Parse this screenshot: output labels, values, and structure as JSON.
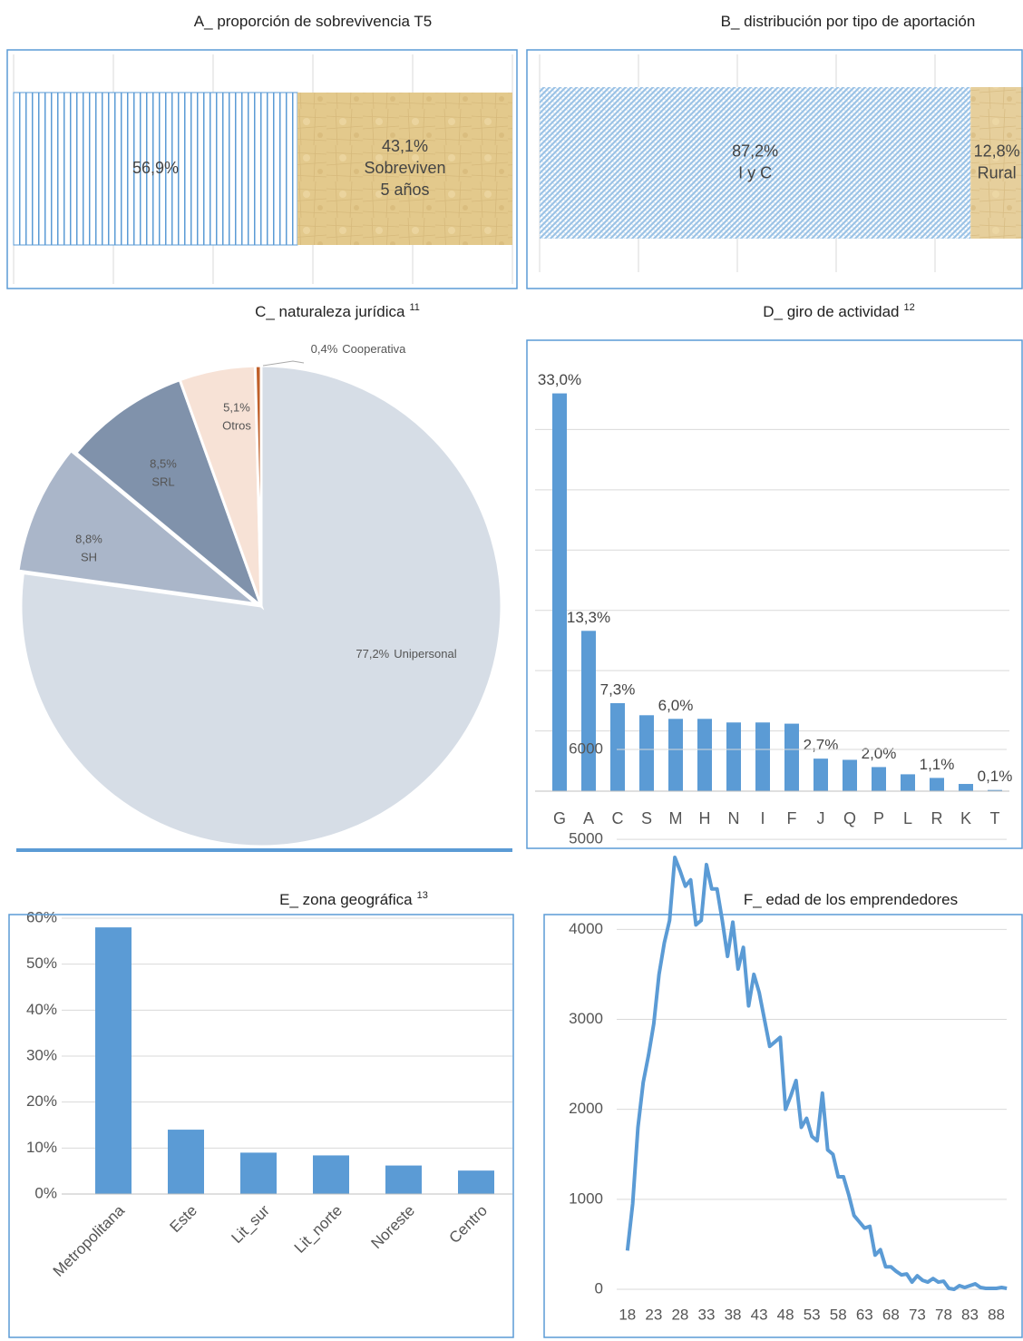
{
  "chart_data": [
    {
      "type": "stacked_bar",
      "title": "A_ proporción de sobrevivencia T5",
      "xlim": [
        0,
        100
      ],
      "xticks": [
        0,
        20,
        40,
        60,
        80,
        100
      ],
      "grid": true,
      "series": [
        {
          "values": [
            56.9
          ],
          "value_labels": [
            "56,9%"
          ],
          "color": "#5b9bd5",
          "pattern": "vertical"
        },
        {
          "name_lines": [
            "Sobreviven",
            "5 años"
          ],
          "values": [
            43.1
          ],
          "value_labels": [
            "43,1%"
          ],
          "color": "#e3c98c",
          "pattern": "paper"
        }
      ]
    },
    {
      "type": "stacked_bar",
      "title": "B_ distribución por tipo de aportación",
      "xlim": [
        0,
        100
      ],
      "xticks": [
        0,
        20,
        40,
        60,
        80,
        100
      ],
      "grid": true,
      "series": [
        {
          "name_lines": [
            "I y C"
          ],
          "values": [
            87.2
          ],
          "value_labels": [
            "87,2%"
          ],
          "color": "#9cc3e6",
          "pattern": "diagonal"
        },
        {
          "name_lines": [
            "Rural"
          ],
          "values": [
            12.8
          ],
          "value_labels": [
            "12,8%"
          ],
          "color": "#e6cf9c",
          "pattern": "paper"
        }
      ]
    },
    {
      "type": "pie",
      "title": "C_ naturaleza jurídica",
      "footnote": "11",
      "categories": [
        "Unipersonal",
        "SH",
        "SRL",
        "Otros",
        "Cooperativa"
      ],
      "values": [
        77.2,
        8.8,
        8.5,
        5.1,
        0.4
      ],
      "value_labels": [
        "77,2%",
        "8,8%",
        "8,5%",
        "5,1%",
        "0,4%"
      ],
      "colors": [
        "#d6dde6",
        "#aab6c9",
        "#8092ab",
        "#f7e2d6",
        "#c0602a"
      ]
    },
    {
      "type": "bar",
      "title": "D_ giro de actividad",
      "footnote": "12",
      "categories": [
        "G",
        "A",
        "C",
        "S",
        "M",
        "H",
        "N",
        "I",
        "F",
        "J",
        "Q",
        "P",
        "L",
        "R",
        "K",
        "T"
      ],
      "values": [
        33.0,
        13.3,
        7.3,
        6.3,
        6.0,
        6.0,
        5.7,
        5.7,
        5.6,
        2.7,
        2.6,
        2.0,
        1.4,
        1.1,
        0.6,
        0.1
      ],
      "value_labels": [
        "33,0%",
        "13,3%",
        "7,3%",
        null,
        "6,0%",
        null,
        null,
        null,
        null,
        "2,7%",
        null,
        "2,0%",
        null,
        "1,1%",
        null,
        "0,1%"
      ],
      "color": "#5b9bd5",
      "ylim": [
        0,
        35
      ],
      "yticks": [
        0,
        5,
        10,
        15,
        20,
        25,
        30
      ],
      "grid": true
    },
    {
      "type": "bar",
      "title": "E_ zona geográfica",
      "footnote": "13",
      "categories": [
        "Metropolitana",
        "Este",
        "Lit_sur",
        "Lit_norte",
        "Noreste",
        "Centro"
      ],
      "values": [
        58.0,
        14.0,
        9.0,
        8.4,
        6.2,
        5.1
      ],
      "color": "#5b9bd5",
      "ylim": [
        0,
        60
      ],
      "yticks": [
        {
          "value": 0,
          "label": "0%"
        },
        {
          "value": 10,
          "label": "10%"
        },
        {
          "value": 20,
          "label": "20%"
        },
        {
          "value": 30,
          "label": "30%"
        },
        {
          "value": 40,
          "label": "40%"
        },
        {
          "value": 50,
          "label": "50%"
        },
        {
          "value": 60,
          "label": "60%"
        }
      ],
      "grid": true
    },
    {
      "type": "line",
      "title": "F_ edad de los emprendedores",
      "x": [
        18,
        19,
        20,
        21,
        22,
        23,
        24,
        25,
        26,
        27,
        28,
        29,
        30,
        31,
        32,
        33,
        34,
        35,
        36,
        37,
        38,
        39,
        40,
        41,
        42,
        43,
        44,
        45,
        46,
        47,
        48,
        49,
        50,
        51,
        52,
        53,
        54,
        55,
        56,
        57,
        58,
        59,
        60,
        61,
        62,
        63,
        64,
        65,
        66,
        67,
        68,
        69,
        70,
        71,
        72,
        73,
        74,
        75,
        76,
        77,
        78,
        79,
        80,
        81,
        82,
        83,
        84,
        85,
        86,
        87,
        88,
        89,
        90
      ],
      "values": [
        430,
        950,
        1800,
        2300,
        2600,
        2950,
        3500,
        3850,
        4100,
        4800,
        4650,
        4480,
        4550,
        4050,
        4100,
        4720,
        4450,
        4450,
        4100,
        3700,
        4080,
        3560,
        3800,
        3150,
        3500,
        3300,
        3000,
        2700,
        2750,
        2800,
        2000,
        2150,
        2320,
        1800,
        1900,
        1700,
        1650,
        2180,
        1550,
        1500,
        1250,
        1250,
        1050,
        820,
        750,
        680,
        700,
        380,
        440,
        250,
        250,
        200,
        160,
        170,
        80,
        150,
        100,
        80,
        120,
        80,
        90,
        10,
        0,
        40,
        20,
        40,
        60,
        20,
        10,
        10,
        10,
        20,
        10
      ],
      "color": "#5b9bd5",
      "xlim": [
        17,
        91
      ],
      "xticks": [
        18,
        23,
        28,
        33,
        38,
        43,
        48,
        53,
        58,
        63,
        68,
        73,
        78,
        83,
        88
      ],
      "ylim": [
        0,
        6000
      ],
      "yticks": [
        0,
        1000,
        2000,
        3000,
        4000,
        5000,
        6000
      ],
      "grid": true
    }
  ]
}
